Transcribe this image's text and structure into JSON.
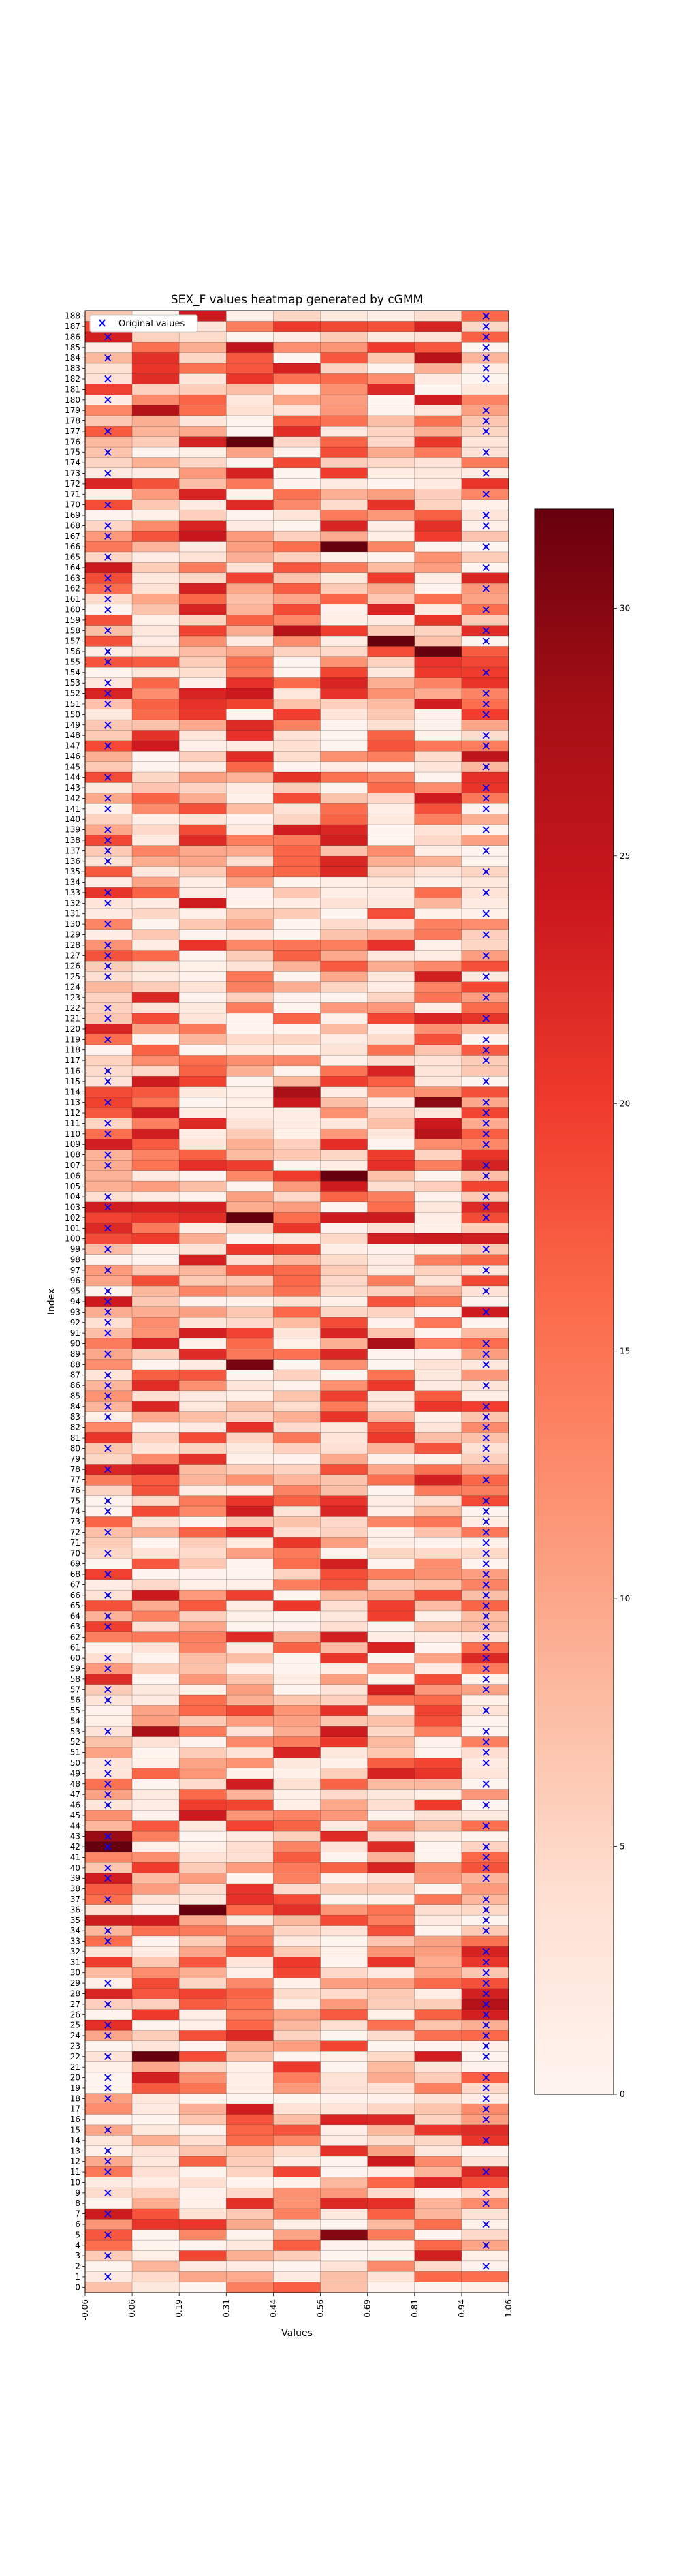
{
  "chart_data": {
    "type": "heatmap",
    "title": "SEX_F values heatmap generated by cGMM",
    "xlabel": "Values",
    "ylabel": "Index",
    "x_tick_labels": [
      "-0.06",
      "0.06",
      "0.19",
      "0.31",
      "0.44",
      "0.56",
      "0.69",
      "0.81",
      "0.94",
      "1.06"
    ],
    "y_tick_labels": [
      "0",
      "1",
      "2",
      "3",
      "4",
      "5",
      "6",
      "7",
      "8",
      "9",
      "10",
      "11",
      "12",
      "13",
      "14",
      "15",
      "16",
      "17",
      "18",
      "19",
      "20",
      "21",
      "22",
      "23",
      "24",
      "25",
      "26",
      "27",
      "28",
      "29",
      "30",
      "31",
      "32",
      "33",
      "34",
      "35",
      "36",
      "37",
      "38",
      "39",
      "40",
      "41",
      "42",
      "43",
      "44",
      "45",
      "46",
      "47",
      "48",
      "49",
      "50",
      "51",
      "52",
      "53",
      "54",
      "55",
      "56",
      "57",
      "58",
      "59",
      "60",
      "61",
      "62",
      "63",
      "64",
      "65",
      "66",
      "67",
      "68",
      "69",
      "70",
      "71",
      "72",
      "73",
      "74",
      "75",
      "76",
      "77",
      "78",
      "79",
      "80",
      "81",
      "82",
      "83",
      "84",
      "85",
      "86",
      "87",
      "88",
      "89",
      "90",
      "91",
      "92",
      "93",
      "94",
      "95",
      "96",
      "97",
      "98",
      "99",
      "100",
      "101",
      "102",
      "103",
      "104",
      "105",
      "106",
      "107",
      "108",
      "109",
      "110",
      "111",
      "112",
      "113",
      "114",
      "115",
      "116",
      "117",
      "118",
      "119",
      "120",
      "121",
      "122",
      "123",
      "124",
      "125",
      "126",
      "127",
      "128",
      "129",
      "130",
      "131",
      "132",
      "133",
      "134",
      "135",
      "136",
      "137",
      "138",
      "139",
      "140",
      "141",
      "142",
      "143",
      "144",
      "145",
      "146",
      "147",
      "148",
      "149",
      "150",
      "151",
      "152",
      "153",
      "154",
      "155",
      "156",
      "157",
      "158",
      "159",
      "160",
      "161",
      "162",
      "163",
      "164",
      "165",
      "166",
      "167",
      "168",
      "169",
      "170",
      "171",
      "172",
      "173",
      "174",
      "175",
      "176",
      "177",
      "178",
      "179",
      "180",
      "181",
      "182",
      "183",
      "184",
      "185",
      "186",
      "187",
      "188"
    ],
    "n_rows": 189,
    "n_bins": 9,
    "x_range": [
      -0.06,
      1.06
    ],
    "y_range": [
      0,
      188
    ],
    "colorbar_ticks": [
      0,
      5,
      10,
      15,
      20,
      25,
      30
    ],
    "colorbar_range": [
      0,
      32
    ],
    "colormap": "Reds",
    "legend": {
      "label": "Original values",
      "placement": "upper left"
    },
    "marker_color": "#0000ff",
    "marker_symbol": "x",
    "markers_at_low_x": [
      1,
      3,
      5,
      7,
      9,
      11,
      12,
      13,
      15,
      18,
      19,
      20,
      22,
      24,
      25,
      27,
      29,
      33,
      34,
      37,
      39,
      40,
      42,
      43,
      46,
      47,
      48,
      49,
      50,
      53,
      56,
      57,
      59,
      60,
      63,
      64,
      66,
      68,
      70,
      72,
      74,
      75,
      78,
      80,
      83,
      84,
      85,
      86,
      87,
      89,
      91,
      92,
      93,
      94,
      95,
      97,
      99,
      101,
      103,
      104,
      107,
      108,
      110,
      111,
      113,
      115,
      116,
      119,
      121,
      122,
      125,
      126,
      127,
      128,
      130,
      132,
      133,
      136,
      137,
      138,
      139,
      141,
      142,
      144,
      147,
      149,
      151,
      152,
      153,
      155,
      156,
      158,
      160,
      161,
      162,
      163,
      165,
      167,
      168,
      170,
      173,
      175,
      177,
      180,
      182,
      184,
      186,
      187
    ],
    "markers_at_high_x": [
      2,
      4,
      6,
      8,
      9,
      11,
      14,
      16,
      17,
      18,
      19,
      20,
      22,
      23,
      24,
      25,
      26,
      27,
      28,
      29,
      30,
      31,
      32,
      34,
      35,
      36,
      37,
      39,
      40,
      41,
      42,
      44,
      46,
      48,
      50,
      51,
      52,
      53,
      55,
      57,
      58,
      59,
      60,
      61,
      62,
      63,
      64,
      65,
      66,
      67,
      68,
      69,
      70,
      71,
      72,
      73,
      74,
      75,
      77,
      79,
      80,
      81,
      82,
      83,
      84,
      86,
      88,
      89,
      90,
      93,
      95,
      97,
      99,
      102,
      103,
      104,
      106,
      107,
      109,
      110,
      111,
      112,
      113,
      115,
      117,
      118,
      119,
      121,
      123,
      125,
      127,
      129,
      131,
      133,
      135,
      137,
      139,
      141,
      142,
      143,
      145,
      147,
      148,
      150,
      151,
      152,
      154,
      157,
      158,
      160,
      162,
      164,
      166,
      168,
      169,
      171,
      173,
      175,
      177,
      178,
      179,
      182,
      183,
      184,
      185,
      186,
      187,
      188
    ],
    "cell_values_seed": 20240517,
    "cell_values_note_omitted": true
  }
}
